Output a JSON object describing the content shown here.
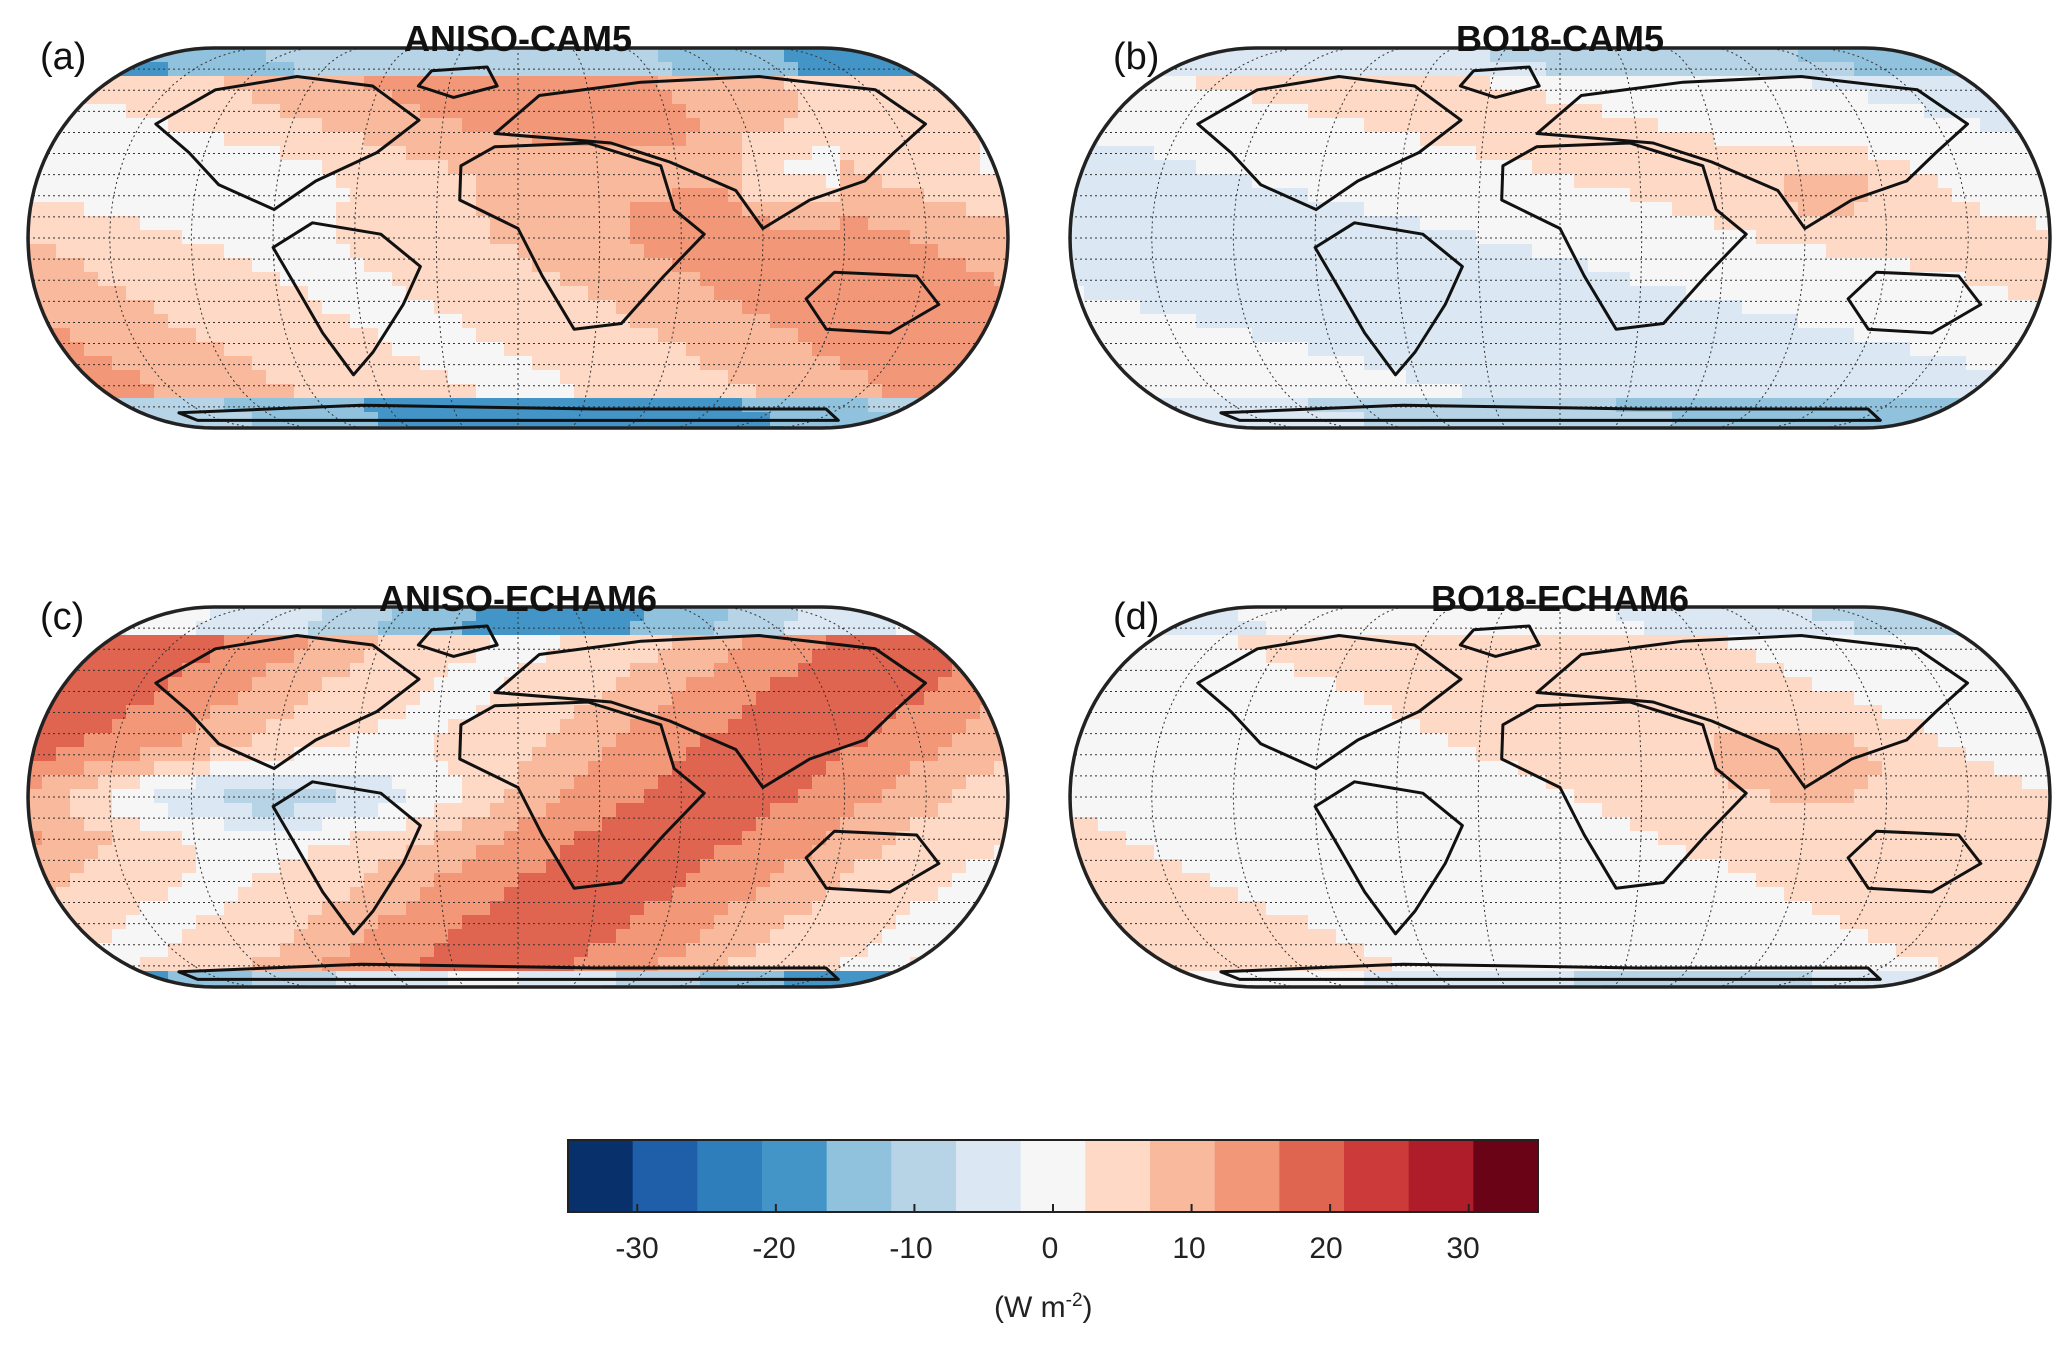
{
  "panels": [
    {
      "letter": "(a)",
      "title": "ANISO-CAM5"
    },
    {
      "letter": "(b)",
      "title": "BO18-CAM5"
    },
    {
      "letter": "(c)",
      "title": "ANISO-ECHAM6"
    },
    {
      "letter": "(d)",
      "title": "BO18-ECHAM6"
    }
  ],
  "colorbar": {
    "colors": [
      "#08306b",
      "#1f5faa",
      "#2e7ebc",
      "#4394c7",
      "#90c2dd",
      "#b7d4e7",
      "#dbe8f3",
      "#f6f6f6",
      "#fdd9c6",
      "#f9b99c",
      "#f29878",
      "#e06550",
      "#cc3a3a",
      "#b01d2a",
      "#6b0316"
    ],
    "ticks": [
      "-30",
      "-20",
      "-10",
      "0",
      "10",
      "20",
      "30"
    ],
    "tick_values": [
      -30,
      -20,
      -10,
      0,
      10,
      20,
      30
    ],
    "range": [
      -35,
      35
    ],
    "unit_base": "(W m",
    "unit_exp": "-2",
    "unit_close": ")"
  },
  "land_color": "#111111"
}
